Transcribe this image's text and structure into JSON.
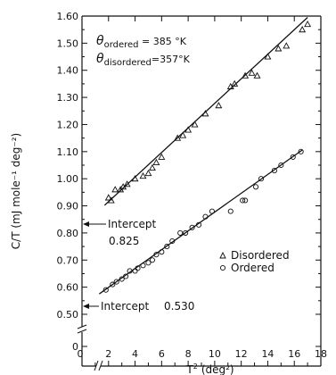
{
  "chart_data": {
    "type": "scatter",
    "title": "",
    "xlabel": "T",
    "xlabel_sup": "2",
    "xlabel_unit": "(deg²)",
    "ylabel": "C/T  (mJ mole⁻¹ deg⁻²)",
    "xlim": [
      0,
      18
    ],
    "ylim": [
      0,
      1.6
    ],
    "y_axis_break": true,
    "x_axis_break": true,
    "x_ticks": [
      0,
      2,
      4,
      6,
      8,
      10,
      12,
      14,
      16,
      18
    ],
    "x_tick_labels": [
      "0",
      "2",
      "4",
      "6",
      "8",
      "10",
      "12",
      "14",
      "16",
      "18"
    ],
    "y_ticks": [
      0,
      0.5,
      0.55,
      0.6,
      0.65,
      0.7,
      0.75,
      0.8,
      0.85,
      0.9,
      0.95,
      1.0,
      1.05,
      1.1,
      1.15,
      1.2,
      1.25,
      1.3,
      1.35,
      1.4,
      1.45,
      1.5,
      1.55,
      1.6
    ],
    "y_tick_labels": [
      "0",
      "0.50",
      "",
      "0.60",
      "",
      "0.70",
      "",
      "0.80",
      "",
      "0.90",
      "",
      "1.00",
      "",
      "1.10",
      "",
      "1.20",
      "",
      "1.30",
      "",
      "1.40",
      "",
      "1.50",
      "",
      "1.60"
    ],
    "grid": false,
    "legend_position": "center-right",
    "annotations": {
      "theta_ordered": {
        "symbol": "θ",
        "sub": "ordered",
        "rest": " = 385 °K"
      },
      "theta_disordered": {
        "symbol": "θ",
        "sub": "disordered",
        "rest": "=357°K"
      },
      "intercept_disordered": {
        "label": "Intercept",
        "value": "0.825",
        "y": 0.825
      },
      "intercept_ordered": {
        "label": "Intercept",
        "value": "0.530",
        "y": 0.53
      }
    },
    "series": [
      {
        "name": "Disordered",
        "marker": "triangle",
        "fit": {
          "intercept": 0.825,
          "slope": 0.0453,
          "x_range": [
            1.7,
            17.0
          ]
        },
        "points": [
          [
            2.0,
            0.93
          ],
          [
            2.2,
            0.92
          ],
          [
            2.5,
            0.96
          ],
          [
            2.9,
            0.96
          ],
          [
            3.1,
            0.97
          ],
          [
            3.4,
            0.98
          ],
          [
            4.0,
            1.0
          ],
          [
            4.6,
            1.01
          ],
          [
            5.0,
            1.02
          ],
          [
            5.3,
            1.04
          ],
          [
            5.6,
            1.06
          ],
          [
            6.0,
            1.08
          ],
          [
            7.2,
            1.15
          ],
          [
            7.6,
            1.16
          ],
          [
            8.0,
            1.18
          ],
          [
            8.5,
            1.2
          ],
          [
            9.3,
            1.24
          ],
          [
            10.3,
            1.27
          ],
          [
            11.2,
            1.34
          ],
          [
            11.5,
            1.35
          ],
          [
            12.3,
            1.38
          ],
          [
            12.8,
            1.39
          ],
          [
            13.2,
            1.38
          ],
          [
            14.0,
            1.45
          ],
          [
            14.8,
            1.48
          ],
          [
            15.4,
            1.49
          ],
          [
            16.6,
            1.55
          ],
          [
            17.0,
            1.57
          ]
        ]
      },
      {
        "name": "Ordered",
        "marker": "circle",
        "fit": {
          "intercept": 0.53,
          "slope": 0.0347,
          "x_range": [
            1.3,
            16.6
          ]
        },
        "points": [
          [
            1.8,
            0.59
          ],
          [
            2.3,
            0.61
          ],
          [
            2.6,
            0.62
          ],
          [
            3.0,
            0.63
          ],
          [
            3.3,
            0.64
          ],
          [
            3.6,
            0.66
          ],
          [
            4.0,
            0.66
          ],
          [
            4.2,
            0.67
          ],
          [
            4.6,
            0.68
          ],
          [
            5.0,
            0.69
          ],
          [
            5.3,
            0.7
          ],
          [
            5.6,
            0.72
          ],
          [
            6.0,
            0.73
          ],
          [
            6.4,
            0.75
          ],
          [
            6.8,
            0.77
          ],
          [
            7.4,
            0.8
          ],
          [
            7.8,
            0.8
          ],
          [
            8.3,
            0.82
          ],
          [
            8.8,
            0.83
          ],
          [
            9.3,
            0.86
          ],
          [
            9.8,
            0.88
          ],
          [
            11.2,
            0.88
          ],
          [
            12.1,
            0.92
          ],
          [
            12.3,
            0.92
          ],
          [
            13.1,
            0.97
          ],
          [
            13.5,
            1.0
          ],
          [
            14.5,
            1.03
          ],
          [
            15.0,
            1.05
          ],
          [
            15.9,
            1.08
          ],
          [
            16.5,
            1.1
          ]
        ]
      }
    ]
  }
}
